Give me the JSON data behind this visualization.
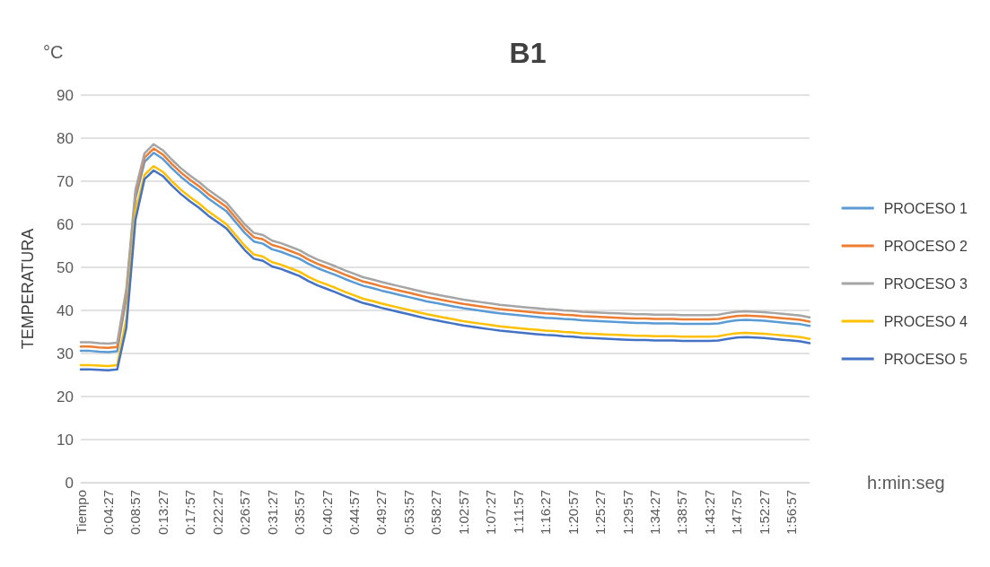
{
  "chart_data": {
    "type": "line",
    "title": "B1",
    "ylabel": "TEMPERATURA",
    "annotations": [
      "°C",
      "h:min:seg"
    ],
    "categories": [
      "Tiempo",
      null,
      null,
      "0:04:27",
      null,
      null,
      "0:08:57",
      null,
      null,
      "0:13:27",
      null,
      null,
      "0:17:57",
      null,
      null,
      "0:22:27",
      null,
      null,
      "0:26:57",
      null,
      null,
      "0:31:27",
      null,
      null,
      "0:35:57",
      null,
      null,
      "0:40:27",
      null,
      null,
      "0:44:57",
      null,
      null,
      "0:49:27",
      null,
      null,
      "0:53:57",
      null,
      null,
      "0:58:27",
      null,
      null,
      "1:02:57",
      null,
      null,
      "1:07:27",
      null,
      null,
      "1:11:57",
      null,
      null,
      "1:16:27",
      null,
      null,
      "1:20:57",
      null,
      null,
      "1:25:27",
      null,
      null,
      "1:29:57",
      null,
      null,
      "1:34:27",
      null,
      null,
      "1:38:57",
      null,
      null,
      "1:43:27",
      null,
      null,
      "1:47:57",
      null,
      null,
      "1:52:27",
      null,
      null,
      "1:56:57",
      null,
      null
    ],
    "series": [
      {
        "name": "PROCESO 1",
        "color": "#5b9bd5",
        "values": [
          30.6,
          30.6,
          30.4,
          30.3,
          30.5,
          43,
          66,
          74.5,
          76.6,
          75.2,
          73,
          71,
          69.3,
          67.8,
          66,
          64.5,
          63,
          60.5,
          58,
          56,
          55.5,
          54.2,
          53.6,
          52.8,
          52,
          50.8,
          49.8,
          49,
          48.2,
          47.3,
          46.5,
          45.7,
          45.2,
          44.6,
          44.1,
          43.6,
          43.1,
          42.6,
          42.1,
          41.7,
          41.3,
          40.9,
          40.5,
          40.2,
          39.9,
          39.6,
          39.3,
          39.1,
          38.9,
          38.7,
          38.5,
          38.3,
          38.2,
          38,
          37.9,
          37.7,
          37.6,
          37.5,
          37.4,
          37.3,
          37.2,
          37.1,
          37.1,
          37,
          37,
          37,
          36.9,
          36.9,
          36.9,
          36.9,
          37,
          37.4,
          37.7,
          37.8,
          37.7,
          37.6,
          37.4,
          37.2,
          37,
          36.8,
          36.4
        ]
      },
      {
        "name": "PROCESO 2",
        "color": "#ed7d31",
        "values": [
          31.6,
          31.6,
          31.4,
          31.3,
          31.5,
          44,
          67,
          75.5,
          77.6,
          76.2,
          74,
          72,
          70.3,
          68.8,
          67,
          65.5,
          64,
          61.5,
          59,
          57,
          56.5,
          55.2,
          54.6,
          53.8,
          53,
          51.8,
          50.8,
          50,
          49.2,
          48.3,
          47.5,
          46.7,
          46.2,
          45.6,
          45.1,
          44.6,
          44.1,
          43.6,
          43.1,
          42.7,
          42.3,
          41.9,
          41.5,
          41.2,
          40.9,
          40.6,
          40.3,
          40.1,
          39.9,
          39.7,
          39.5,
          39.3,
          39.2,
          39,
          38.9,
          38.7,
          38.6,
          38.5,
          38.4,
          38.3,
          38.2,
          38.1,
          38.1,
          38,
          38,
          38,
          37.9,
          37.9,
          37.9,
          37.9,
          38,
          38.4,
          38.7,
          38.8,
          38.7,
          38.6,
          38.4,
          38.2,
          38,
          37.8,
          37.4
        ]
      },
      {
        "name": "PROCESO 3",
        "color": "#a5a5a5",
        "values": [
          32.6,
          32.6,
          32.4,
          32.3,
          32.5,
          45,
          68,
          76.5,
          78.6,
          77.2,
          75,
          73,
          71.3,
          69.8,
          68,
          66.5,
          65,
          62.5,
          60,
          58,
          57.5,
          56.2,
          55.6,
          54.8,
          54,
          52.8,
          51.8,
          51,
          50.2,
          49.3,
          48.5,
          47.7,
          47.2,
          46.6,
          46.1,
          45.6,
          45.1,
          44.6,
          44.1,
          43.7,
          43.3,
          42.9,
          42.5,
          42.2,
          41.9,
          41.6,
          41.3,
          41.1,
          40.9,
          40.7,
          40.5,
          40.3,
          40.2,
          40,
          39.9,
          39.7,
          39.6,
          39.5,
          39.4,
          39.3,
          39.2,
          39.1,
          39.1,
          39,
          39,
          39,
          38.9,
          38.9,
          38.9,
          38.9,
          39,
          39.4,
          39.7,
          39.8,
          39.7,
          39.6,
          39.4,
          39.2,
          39,
          38.8,
          38.4
        ]
      },
      {
        "name": "PROCESO 4",
        "color": "#ffc000",
        "values": [
          27.3,
          27.3,
          27.2,
          27.1,
          27.3,
          38,
          63,
          71.5,
          73.5,
          72.2,
          70,
          68,
          66.3,
          64.8,
          63,
          61.5,
          60,
          57.5,
          55,
          53,
          52.5,
          51.2,
          50.6,
          49.8,
          49,
          47.8,
          46.8,
          46,
          45.2,
          44.3,
          43.5,
          42.7,
          42.2,
          41.6,
          41.1,
          40.6,
          40.1,
          39.6,
          39.1,
          38.7,
          38.3,
          37.9,
          37.5,
          37.2,
          36.9,
          36.6,
          36.3,
          36.1,
          35.9,
          35.7,
          35.5,
          35.3,
          35.2,
          35,
          34.9,
          34.7,
          34.6,
          34.5,
          34.4,
          34.3,
          34.2,
          34.1,
          34.1,
          34,
          34,
          34,
          33.9,
          33.9,
          33.9,
          33.9,
          34,
          34.4,
          34.7,
          34.8,
          34.7,
          34.6,
          34.4,
          34.2,
          34,
          33.8,
          33.4
        ]
      },
      {
        "name": "PROCESO 5",
        "color": "#4472c4",
        "values": [
          26.3,
          26.3,
          26.2,
          26.1,
          26.3,
          36,
          61,
          70.5,
          72.5,
          71.2,
          69,
          67,
          65.3,
          63.8,
          62,
          60.5,
          59,
          56.5,
          54,
          52,
          51.5,
          50.2,
          49.6,
          48.8,
          48,
          46.8,
          45.8,
          45,
          44.2,
          43.3,
          42.5,
          41.7,
          41.2,
          40.6,
          40.1,
          39.6,
          39.1,
          38.6,
          38.1,
          37.7,
          37.3,
          36.9,
          36.5,
          36.2,
          35.9,
          35.6,
          35.3,
          35.1,
          34.9,
          34.7,
          34.5,
          34.3,
          34.2,
          34,
          33.9,
          33.7,
          33.6,
          33.5,
          33.4,
          33.3,
          33.2,
          33.1,
          33.1,
          33,
          33,
          33,
          32.9,
          32.9,
          32.9,
          32.9,
          33,
          33.4,
          33.7,
          33.8,
          33.7,
          33.6,
          33.4,
          33.2,
          33,
          32.8,
          32.4
        ]
      }
    ],
    "ylim": [
      0,
      90
    ],
    "yticks": [
      0,
      10,
      20,
      30,
      40,
      50,
      60,
      70,
      80,
      90
    ],
    "grid": "y",
    "legend": "right",
    "marker": "none",
    "line_style": "solid"
  }
}
